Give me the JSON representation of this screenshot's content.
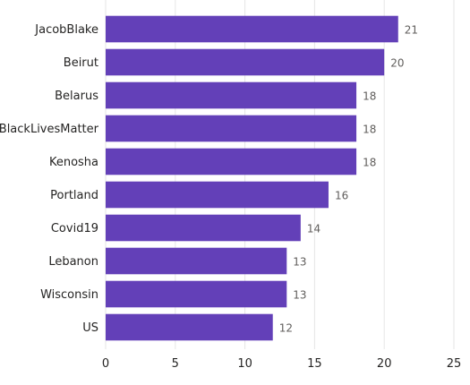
{
  "chart_data": {
    "type": "bar",
    "orientation": "horizontal",
    "categories": [
      "JacobBlake",
      "Beirut",
      "Belarus",
      "BlackLivesMatter",
      "Kenosha",
      "Portland",
      "Covid19",
      "Lebanon",
      "Wisconsin",
      "US"
    ],
    "values": [
      21,
      20,
      18,
      18,
      18,
      16,
      14,
      13,
      13,
      12
    ],
    "xlim": [
      0,
      25
    ],
    "xticks": [
      0,
      5,
      10,
      15,
      20,
      25
    ],
    "grid": true,
    "bar_color": "#6340b8",
    "data_labels": true
  }
}
